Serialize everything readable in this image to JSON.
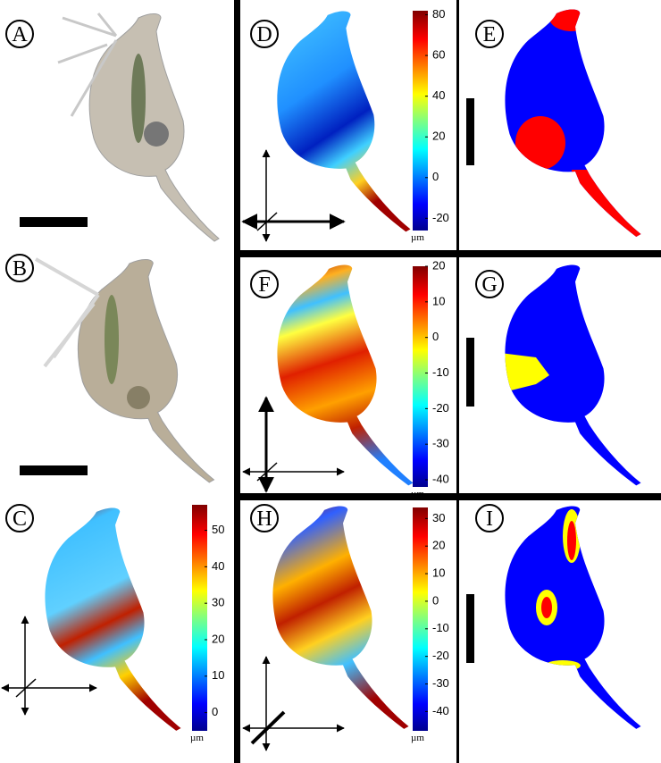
{
  "panels": [
    {
      "label": "A"
    },
    {
      "label": "B"
    },
    {
      "label": "C",
      "colorbar": {
        "lim": [
          -5,
          57
        ],
        "ticks": [
          0,
          10,
          20,
          30,
          40,
          50
        ],
        "unit": "µm"
      }
    },
    {
      "label": "D",
      "colorbar": {
        "lim": [
          -26,
          82
        ],
        "ticks": [
          -20,
          0,
          20,
          40,
          60,
          80
        ],
        "unit": "µm"
      }
    },
    {
      "label": "E"
    },
    {
      "label": "F",
      "colorbar": {
        "lim": [
          -42,
          20
        ],
        "ticks": [
          -40,
          -30,
          -20,
          -10,
          0,
          10,
          20
        ],
        "unit": "µm"
      }
    },
    {
      "label": "G"
    },
    {
      "label": "H",
      "colorbar": {
        "lim": [
          -47,
          34
        ],
        "ticks": [
          -40,
          -30,
          -20,
          -10,
          0,
          10,
          20,
          30
        ],
        "unit": "µm"
      }
    },
    {
      "label": "I"
    }
  ]
}
